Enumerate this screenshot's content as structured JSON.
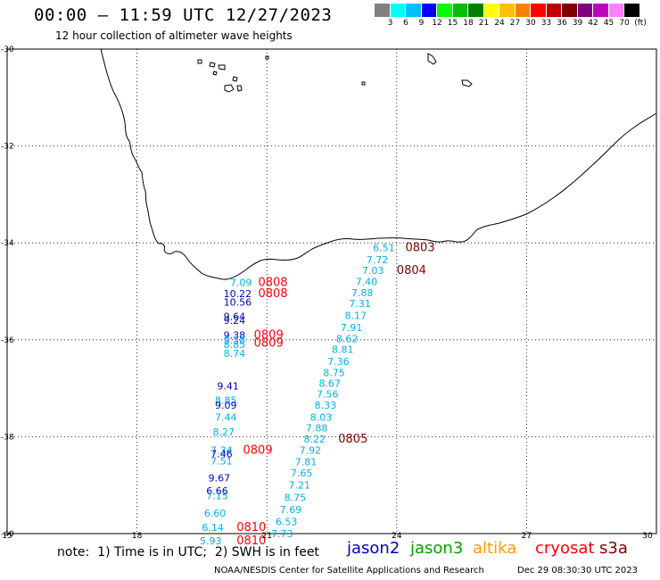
{
  "title": "00:00 – 11:59 UTC 12/27/2023",
  "subtitle": "12 hour collection of altimeter wave heights",
  "legend": {
    "colors": [
      "#808080",
      "#00ffff",
      "#00c0ff",
      "#0000ff",
      "#00ff00",
      "#00c000",
      "#008000",
      "#ffff00",
      "#ffc000",
      "#ff8000",
      "#ff0000",
      "#c00000",
      "#800000",
      "#800080",
      "#c000c0",
      "#ff80ff",
      "#000000"
    ],
    "ticks": [
      "3",
      "6",
      "9",
      "12",
      "15",
      "18",
      "21",
      "24",
      "27",
      "30",
      "33",
      "36",
      "39",
      "42",
      "45",
      "70"
    ],
    "unit": "(ft)"
  },
  "axes": {
    "lat_labels": [
      "-30",
      "-32",
      "-34",
      "-36",
      "-38",
      "-40"
    ],
    "lon_labels": [
      "15",
      "18",
      "21",
      "24",
      "27",
      "30"
    ]
  },
  "satellite_colors": {
    "jason2": "#0000c0",
    "jason3": "#00a000",
    "altika": "#ff9900",
    "cryosat": "#ff0000",
    "s3a": "#800000",
    "cyan": "#00b0e8"
  },
  "labels": [
    {
      "text": "7.09",
      "lon": 20.15,
      "lat": -34.82,
      "c": "cyan"
    },
    {
      "text": "0808",
      "lon": 20.8,
      "lat": -34.82,
      "c": "cryosat",
      "big": true
    },
    {
      "text": "10.22",
      "lon": 20.0,
      "lat": -35.05,
      "c": "jason2"
    },
    {
      "text": "0808",
      "lon": 20.8,
      "lat": -35.05,
      "c": "cryosat",
      "big": true
    },
    {
      "text": "10.56",
      "lon": 20.0,
      "lat": -35.22,
      "c": "jason2"
    },
    {
      "text": "9.64",
      "lon": 20.0,
      "lat": -35.52,
      "c": "jason2"
    },
    {
      "text": "9.24",
      "lon": 20.0,
      "lat": -35.6,
      "c": "jason2"
    },
    {
      "text": "9.38",
      "lon": 20.0,
      "lat": -35.9,
      "c": "jason2"
    },
    {
      "text": "0809",
      "lon": 20.7,
      "lat": -35.9,
      "c": "cryosat",
      "big": true
    },
    {
      "text": "9.38",
      "lon": 20.0,
      "lat": -36.0,
      "c": "cyan"
    },
    {
      "text": "0809",
      "lon": 20.7,
      "lat": -36.07,
      "c": "cryosat",
      "big": true
    },
    {
      "text": "8.85",
      "lon": 20.0,
      "lat": -36.1,
      "c": "cyan"
    },
    {
      "text": "8.74",
      "lon": 20.0,
      "lat": -36.28,
      "c": "cyan"
    },
    {
      "text": "9.41",
      "lon": 19.85,
      "lat": -36.95,
      "c": "jason2"
    },
    {
      "text": "8.85",
      "lon": 19.8,
      "lat": -37.25,
      "c": "cyan"
    },
    {
      "text": "9.09",
      "lon": 19.8,
      "lat": -37.35,
      "c": "jason2"
    },
    {
      "text": "7.44",
      "lon": 19.8,
      "lat": -37.6,
      "c": "cyan"
    },
    {
      "text": "8.27",
      "lon": 19.75,
      "lat": -37.9,
      "c": "cyan"
    },
    {
      "text": "7.34",
      "lon": 19.7,
      "lat": -38.28,
      "c": "cyan"
    },
    {
      "text": "0809",
      "lon": 20.45,
      "lat": -38.28,
      "c": "cryosat",
      "big": true
    },
    {
      "text": "7.46",
      "lon": 19.7,
      "lat": -38.35,
      "c": "jason2"
    },
    {
      "text": "7.51",
      "lon": 19.7,
      "lat": -38.5,
      "c": "cyan"
    },
    {
      "text": "9.67",
      "lon": 19.65,
      "lat": -38.85,
      "c": "jason2"
    },
    {
      "text": "6.66",
      "lon": 19.6,
      "lat": -39.12,
      "c": "jason2"
    },
    {
      "text": "7.15",
      "lon": 19.6,
      "lat": -39.22,
      "c": "cyan"
    },
    {
      "text": "6.60",
      "lon": 19.55,
      "lat": -39.58,
      "c": "cyan"
    },
    {
      "text": "6.14",
      "lon": 19.5,
      "lat": -39.87,
      "c": "cyan"
    },
    {
      "text": "0810",
      "lon": 20.3,
      "lat": -39.87,
      "c": "cryosat",
      "big": true
    },
    {
      "text": "5.93",
      "lon": 19.45,
      "lat": -40.15,
      "c": "cyan"
    },
    {
      "text": "0810",
      "lon": 20.3,
      "lat": -40.15,
      "c": "cryosat",
      "big": true
    },
    {
      "text": "6.51",
      "lon": 23.45,
      "lat": -34.1,
      "c": "cyan"
    },
    {
      "text": "0803",
      "lon": 24.2,
      "lat": -34.1,
      "c": "s3a",
      "big": true
    },
    {
      "text": "7.72",
      "lon": 23.3,
      "lat": -34.35,
      "c": "cyan"
    },
    {
      "text": "7.03",
      "lon": 23.2,
      "lat": -34.57,
      "c": "cyan"
    },
    {
      "text": "0804",
      "lon": 24.0,
      "lat": -34.57,
      "c": "s3a",
      "big": true
    },
    {
      "text": "7.40",
      "lon": 23.05,
      "lat": -34.8,
      "c": "cyan"
    },
    {
      "text": "7.88",
      "lon": 22.95,
      "lat": -35.03,
      "c": "cyan"
    },
    {
      "text": "7.31",
      "lon": 22.9,
      "lat": -35.25,
      "c": "cyan"
    },
    {
      "text": "8.17",
      "lon": 22.8,
      "lat": -35.5,
      "c": "cyan"
    },
    {
      "text": "7.91",
      "lon": 22.7,
      "lat": -35.75,
      "c": "cyan"
    },
    {
      "text": "8.62",
      "lon": 22.6,
      "lat": -35.98,
      "c": "cyan"
    },
    {
      "text": "8.81",
      "lon": 22.5,
      "lat": -36.2,
      "c": "cyan"
    },
    {
      "text": "7.36",
      "lon": 22.4,
      "lat": -36.45,
      "c": "cyan"
    },
    {
      "text": "8.75",
      "lon": 22.3,
      "lat": -36.68,
      "c": "cyan"
    },
    {
      "text": "8.67",
      "lon": 22.2,
      "lat": -36.9,
      "c": "cyan"
    },
    {
      "text": "7.56",
      "lon": 22.15,
      "lat": -37.12,
      "c": "cyan"
    },
    {
      "text": "8.33",
      "lon": 22.1,
      "lat": -37.35,
      "c": "cyan"
    },
    {
      "text": "8.03",
      "lon": 22.0,
      "lat": -37.6,
      "c": "cyan"
    },
    {
      "text": "7.88",
      "lon": 21.9,
      "lat": -37.82,
      "c": "cyan"
    },
    {
      "text": "8.22",
      "lon": 21.85,
      "lat": -38.05,
      "c": "cyan"
    },
    {
      "text": "0805",
      "lon": 22.65,
      "lat": -38.05,
      "c": "s3a",
      "big": true
    },
    {
      "text": "7.92",
      "lon": 21.75,
      "lat": -38.28,
      "c": "cyan"
    },
    {
      "text": "7.81",
      "lon": 21.65,
      "lat": -38.52,
      "c": "cyan"
    },
    {
      "text": "7.65",
      "lon": 21.55,
      "lat": -38.75,
      "c": "cyan"
    },
    {
      "text": "7.21",
      "lon": 21.5,
      "lat": -39.0,
      "c": "cyan"
    },
    {
      "text": "8.75",
      "lon": 21.4,
      "lat": -39.25,
      "c": "cyan"
    },
    {
      "text": "7.69",
      "lon": 21.3,
      "lat": -39.5,
      "c": "cyan"
    },
    {
      "text": "6.53",
      "lon": 21.2,
      "lat": -39.75,
      "c": "cyan"
    },
    {
      "text": "7.73",
      "lon": 21.1,
      "lat": -40.0,
      "c": "cyan"
    }
  ],
  "note": "note:  1) Time is in UTC;  2) SWH is in feet",
  "satellites": [
    {
      "name": "jason2",
      "color": "#0000c0"
    },
    {
      "name": "jason3",
      "color": "#00a000"
    },
    {
      "name": "altika",
      "color": "#ff9900"
    },
    {
      "name": "cryosat",
      "color": "#ff0000"
    },
    {
      "name": "s3a",
      "color": "#800000"
    }
  ],
  "credit": "NOAA/NESDIS Center for Satellite Applications and Research",
  "timestamp": "Dec 29 08:30:30 UTC 2023"
}
